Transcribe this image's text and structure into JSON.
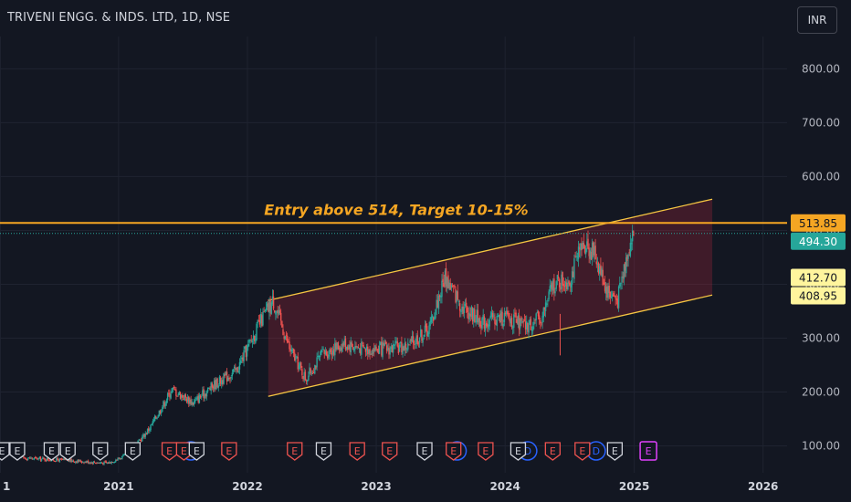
{
  "header": {
    "title": "TRIVENI ENGG. & INDS. LTD, 1D, NSE",
    "currency": "INR"
  },
  "colors": {
    "background": "#131722",
    "up": "#26a69a",
    "down": "#ef5350",
    "grid": "#1f2330",
    "channel": "#f5c542",
    "channel_fill": "rgba(178,40,60,0.28)",
    "entry_line": "#f5a623",
    "annotation": "#f5a623",
    "last_price": "#26a69a",
    "earnings_past": "#ef5350",
    "earnings_future": "#e040fb",
    "dividend": "#2962ff"
  },
  "chart_data": {
    "type": "candlestick",
    "symbol": "TRIVENI ENGG. & INDS. LTD",
    "interval": "1D",
    "exchange": "NSE",
    "currency": "INR",
    "x_ticks": [
      "1",
      "2021",
      "2022",
      "2023",
      "2024",
      "2025",
      "2026"
    ],
    "y_ticks": [
      "100.00",
      "200.00",
      "300.00",
      "400.00",
      "500.00",
      "600.00",
      "700.00",
      "800.00"
    ],
    "ylim": [
      50,
      860
    ],
    "xlim": [
      "2020-01-31",
      "2026-03-10"
    ],
    "price_path": [
      {
        "date": "2020-04-01",
        "price": 78
      },
      {
        "date": "2020-09-01",
        "price": 72
      },
      {
        "date": "2020-12-01",
        "price": 68
      },
      {
        "date": "2021-02-01",
        "price": 85
      },
      {
        "date": "2021-04-01",
        "price": 135
      },
      {
        "date": "2021-06-01",
        "price": 205
      },
      {
        "date": "2021-08-01",
        "price": 180
      },
      {
        "date": "2021-10-01",
        "price": 215
      },
      {
        "date": "2021-12-01",
        "price": 240
      },
      {
        "date": "2022-01-15",
        "price": 300
      },
      {
        "date": "2022-02-15",
        "price": 340
      },
      {
        "date": "2022-03-15",
        "price": 370
      },
      {
        "date": "2022-05-01",
        "price": 280
      },
      {
        "date": "2022-06-15",
        "price": 225
      },
      {
        "date": "2022-08-01",
        "price": 270
      },
      {
        "date": "2022-10-01",
        "price": 290
      },
      {
        "date": "2022-12-01",
        "price": 280
      },
      {
        "date": "2023-02-01",
        "price": 280
      },
      {
        "date": "2023-04-01",
        "price": 285
      },
      {
        "date": "2023-06-01",
        "price": 320
      },
      {
        "date": "2023-07-15",
        "price": 415
      },
      {
        "date": "2023-09-01",
        "price": 360
      },
      {
        "date": "2023-11-01",
        "price": 330
      },
      {
        "date": "2024-01-01",
        "price": 340
      },
      {
        "date": "2024-03-01",
        "price": 320
      },
      {
        "date": "2024-04-15",
        "price": 340
      },
      {
        "date": "2024-05-15",
        "price": 400
      },
      {
        "date": "2024-07-01",
        "price": 410
      },
      {
        "date": "2024-08-15",
        "price": 480
      },
      {
        "date": "2024-09-15",
        "price": 450
      },
      {
        "date": "2024-10-15",
        "price": 390
      },
      {
        "date": "2024-11-15",
        "price": 370
      },
      {
        "date": "2024-12-15",
        "price": 470
      },
      {
        "date": "2025-01-01",
        "price": 494
      }
    ],
    "channel": {
      "upper": [
        {
          "date": "2022-03-01",
          "price": 370
        },
        {
          "date": "2025-08-10",
          "price": 558
        }
      ],
      "lower": [
        {
          "date": "2022-03-01",
          "price": 192
        },
        {
          "date": "2025-08-10",
          "price": 380
        }
      ]
    },
    "entry_line": 513.85,
    "annotation": "Entry above 514, Target 10-15%",
    "price_labels": [
      {
        "value": 513.85,
        "text": "513.85",
        "bg": "#f5a623",
        "fg": "#131722"
      },
      {
        "value": 494.3,
        "text": "494.30",
        "bg": "#26a69a",
        "fg": "#ffffff"
      },
      {
        "value": 412.7,
        "text": "412.70",
        "bg": "#fff59d",
        "fg": "#131722"
      },
      {
        "value": 408.95,
        "text": "408.95",
        "bg": "#fff59d",
        "fg": "#131722"
      }
    ],
    "events": {
      "earnings_past": [
        "2020-02-05",
        "2020-03-20",
        "2020-06-25",
        "2020-08-10",
        "2020-11-10",
        "2021-02-10",
        "2021-05-25",
        "2021-07-05",
        "2021-08-10",
        "2021-11-10",
        "2022-05-15",
        "2022-08-05",
        "2022-11-08",
        "2023-02-08",
        "2023-05-18",
        "2023-08-08",
        "2023-11-07",
        "2024-02-07",
        "2024-05-15",
        "2024-08-07",
        "2024-11-07"
      ],
      "earnings_future": [
        "2025-02-10"
      ],
      "dividends": [
        "2021-07-25",
        "2023-08-18",
        "2024-03-05",
        "2024-09-15"
      ],
      "label": "E",
      "dividend_label": "D"
    }
  }
}
